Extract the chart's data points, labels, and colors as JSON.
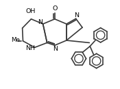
{
  "bg_color": "#ffffff",
  "line_color": "#3a3a3a",
  "line_width": 1.2,
  "text_color": "#000000",
  "font_size": 6.8,
  "xlim": [
    0,
    10
  ],
  "ylim": [
    0,
    7.5
  ]
}
